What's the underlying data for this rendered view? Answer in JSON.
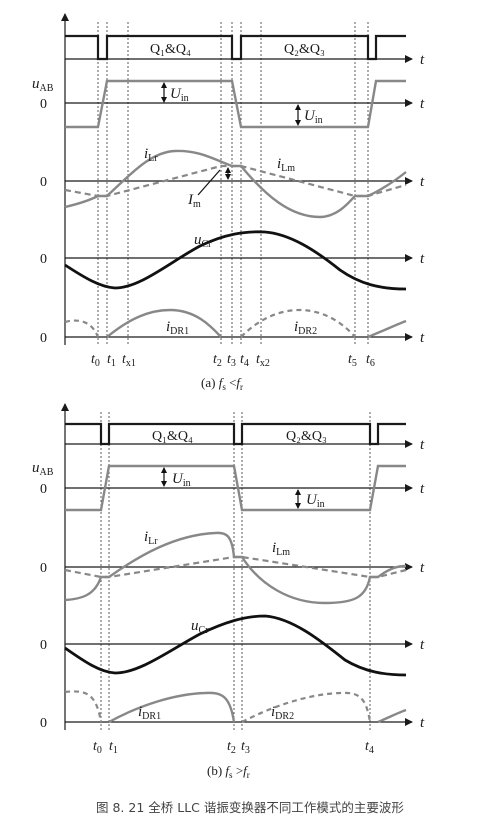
{
  "panel_a": {
    "gate_on_label": "Q₁&Q₄",
    "gate_off_label": "Q₂&Q₃",
    "uab_label": "u",
    "uab_sub": "AB",
    "uin_label": "U",
    "uin_sub": "in",
    "ilr_label": "i",
    "ilr_sub": "Lr",
    "ilm_label": "i",
    "ilm_sub": "Lm",
    "im_label": "I",
    "im_sub": "m",
    "ucr_label": "u",
    "ucr_sub": "Cr",
    "idr1_label": "i",
    "idr1_sub": "DR1",
    "idr2_label": "i",
    "idr2_sub": "DR2",
    "zero": "0",
    "t": "t",
    "time_marks": [
      {
        "base": "t",
        "sub": "0"
      },
      {
        "base": "t",
        "sub": "1"
      },
      {
        "base": "t",
        "sub": "x1"
      },
      {
        "base": "t",
        "sub": "2"
      },
      {
        "base": "t",
        "sub": "3"
      },
      {
        "base": "t",
        "sub": "4"
      },
      {
        "base": "t",
        "sub": "x2"
      },
      {
        "base": "t",
        "sub": "5"
      },
      {
        "base": "t",
        "sub": "6"
      }
    ],
    "caption_prefix": "(a) ",
    "caption_fs": "f",
    "caption_fs_sub": "s",
    "caption_op": " <",
    "caption_fr": "f",
    "caption_fr_sub": "r"
  },
  "panel_b": {
    "gate_on_label": "Q₁&Q₄",
    "gate_off_label": "Q₂&Q₃",
    "uab_label": "u",
    "uab_sub": "AB",
    "uin_label": "U",
    "uin_sub": "in",
    "ilr_label": "i",
    "ilr_sub": "Lr",
    "ilm_label": "i",
    "ilm_sub": "Lm",
    "ucr_label": "u",
    "ucr_sub": "Cr",
    "idr1_label": "i",
    "idr1_sub": "DR1",
    "idr2_label": "i",
    "idr2_sub": "DR2",
    "zero": "0",
    "t": "t",
    "time_marks": [
      {
        "base": "t",
        "sub": "0"
      },
      {
        "base": "t",
        "sub": "1"
      },
      {
        "base": "t",
        "sub": "2"
      },
      {
        "base": "t",
        "sub": "3"
      },
      {
        "base": "t",
        "sub": "4"
      }
    ],
    "caption_prefix": "(b) ",
    "caption_fs": "f",
    "caption_fs_sub": "s",
    "caption_op": " >",
    "caption_fr": "f",
    "caption_fr_sub": "r"
  },
  "figure_caption": "图 8. 21    全桥 LLC 谐振变换器不同工作模式的主要波形"
}
